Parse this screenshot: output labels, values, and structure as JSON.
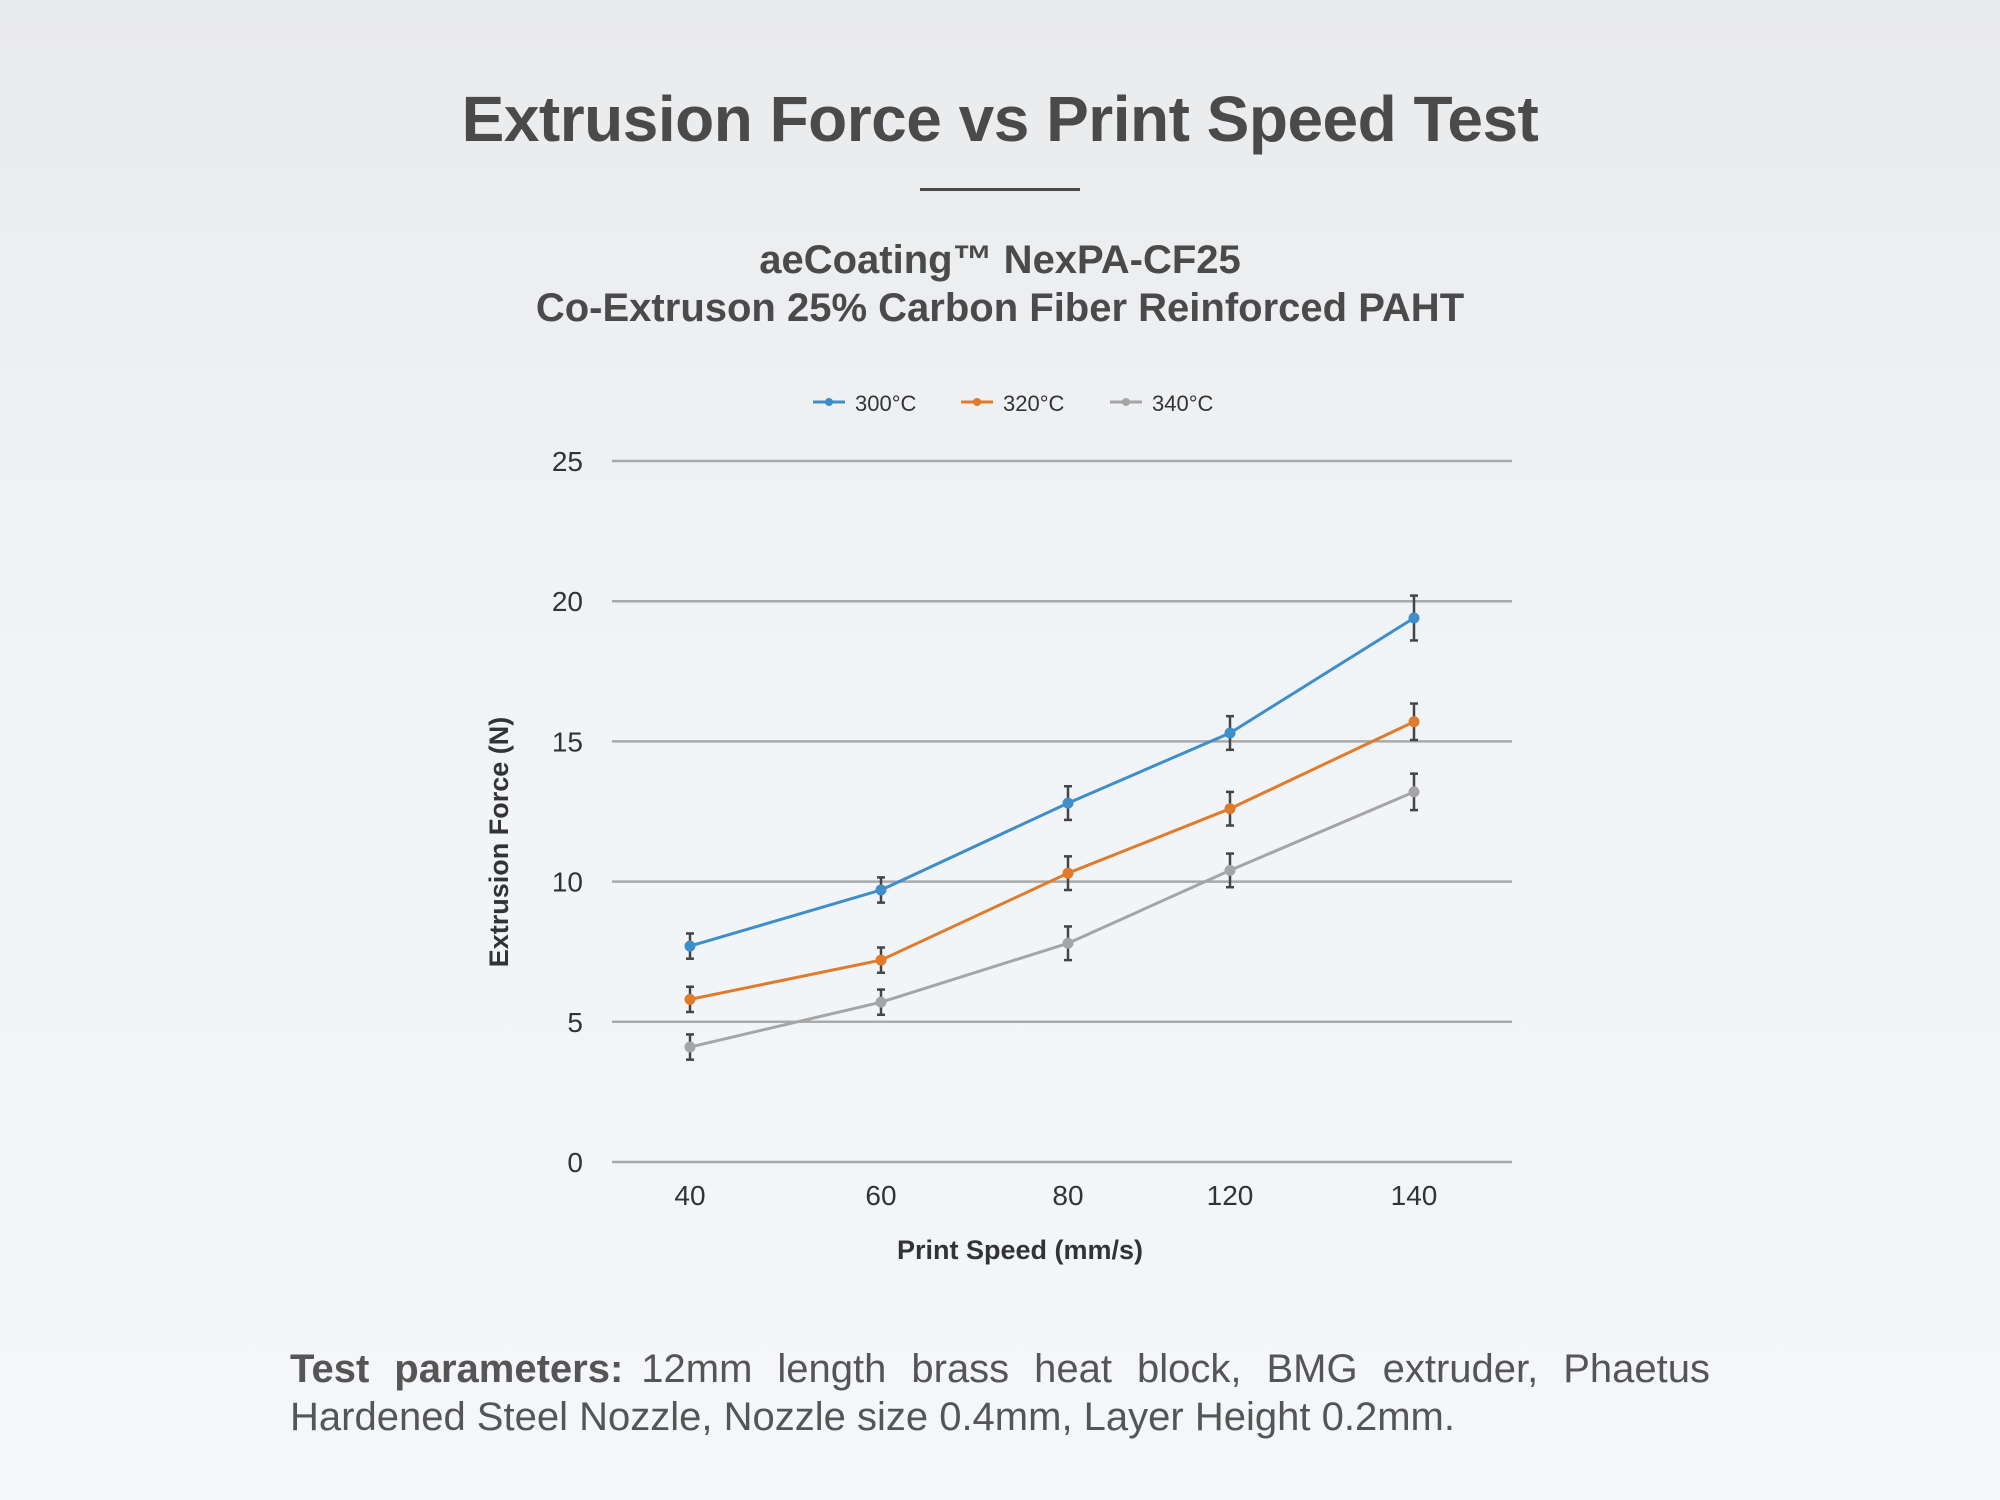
{
  "header": {
    "title": "Extrusion Force vs Print Speed Test",
    "subtitle_line1": "aeCoating™ NexPA-CF25",
    "subtitle_line2": "Co-Extruson 25% Carbon Fiber Reinforced PAHT"
  },
  "chart_data": {
    "type": "line",
    "categories": [
      "40",
      "60",
      "80",
      "120",
      "140"
    ],
    "xlabel": "Print Speed (mm/s)",
    "ylabel": "Extrusion Force (N)",
    "ylim": [
      0,
      25
    ],
    "yticks": [
      0,
      5,
      10,
      15,
      20,
      25
    ],
    "grid": "horizontal",
    "legend": "top-center",
    "error_bars": true,
    "series": [
      {
        "name": "300°C",
        "color": "#3d8ec9",
        "values": [
          7.7,
          9.7,
          12.8,
          15.3,
          19.4
        ],
        "errors": [
          0.45,
          0.45,
          0.6,
          0.6,
          0.8
        ]
      },
      {
        "name": "320°C",
        "color": "#e07b2c",
        "values": [
          5.8,
          7.2,
          10.3,
          12.6,
          15.7
        ],
        "errors": [
          0.45,
          0.45,
          0.6,
          0.6,
          0.65
        ]
      },
      {
        "name": "340°C",
        "color": "#a5a5a5",
        "values": [
          4.1,
          5.7,
          7.8,
          10.4,
          13.2
        ],
        "errors": [
          0.45,
          0.45,
          0.6,
          0.6,
          0.65
        ]
      }
    ]
  },
  "footer": {
    "label": "Test parameters:",
    "text": "12mm length brass heat block, BMG extruder, Phaetus Hardened Steel Nozzle, Nozzle size 0.4mm, Layer Height 0.2mm."
  }
}
